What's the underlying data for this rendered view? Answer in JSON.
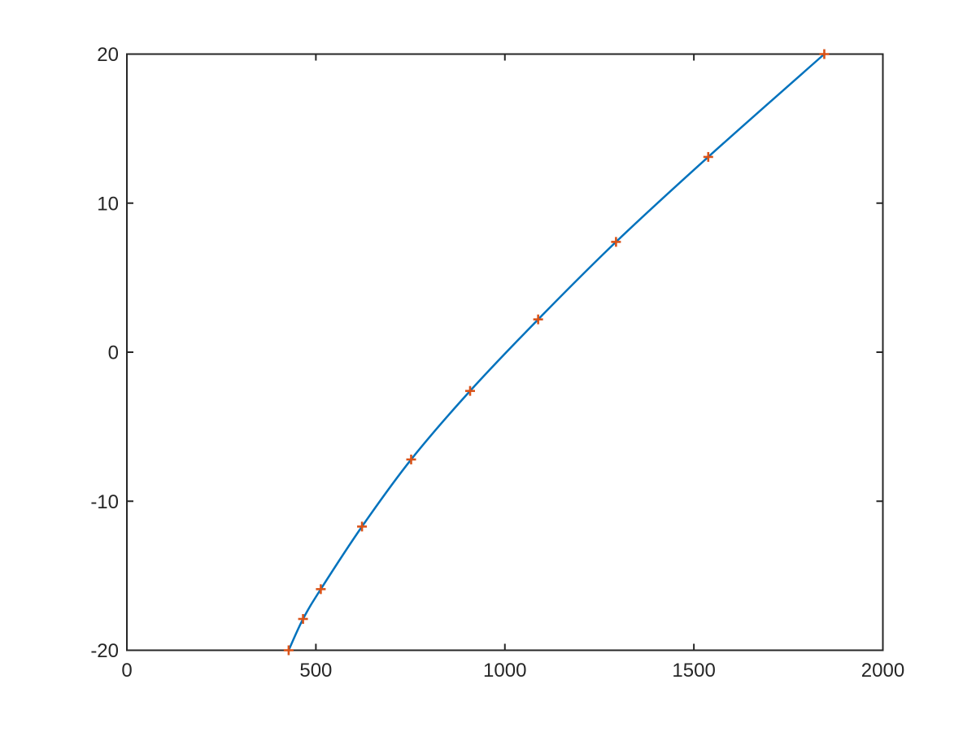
{
  "figure": {
    "background_color": "#ffffff",
    "axis_color": "#262626",
    "tick_label_color": "#262626"
  },
  "chart_data": {
    "type": "line",
    "title": "",
    "subtitle": "",
    "xlabel": "",
    "ylabel": "",
    "xlim": [
      0,
      2000
    ],
    "ylim": [
      -20,
      20
    ],
    "xticks": [
      {
        "value": 0,
        "label": "0"
      },
      {
        "value": 500,
        "label": "500"
      },
      {
        "value": 1000,
        "label": "1000"
      },
      {
        "value": 1500,
        "label": "1500"
      },
      {
        "value": 2000,
        "label": "2000"
      }
    ],
    "yticks": [
      {
        "value": -20,
        "label": "-20"
      },
      {
        "value": -10,
        "label": "-10"
      },
      {
        "value": 0,
        "label": "0"
      },
      {
        "value": 10,
        "label": "10"
      },
      {
        "value": 20,
        "label": "20"
      }
    ],
    "grid": false,
    "box": true,
    "tick_direction": "in",
    "legend": null,
    "series": [
      {
        "name": "series-1",
        "style": "smooth-line-with-markers",
        "line_color": "#0072BD",
        "marker": "+",
        "marker_color": "#D95319",
        "x": [
          428,
          466,
          513,
          622,
          752,
          908,
          1088,
          1294,
          1538,
          1845
        ],
        "y": [
          -20.0,
          -17.9,
          -15.9,
          -11.7,
          -7.2,
          -2.6,
          2.2,
          7.4,
          13.1,
          20.0
        ]
      }
    ]
  }
}
